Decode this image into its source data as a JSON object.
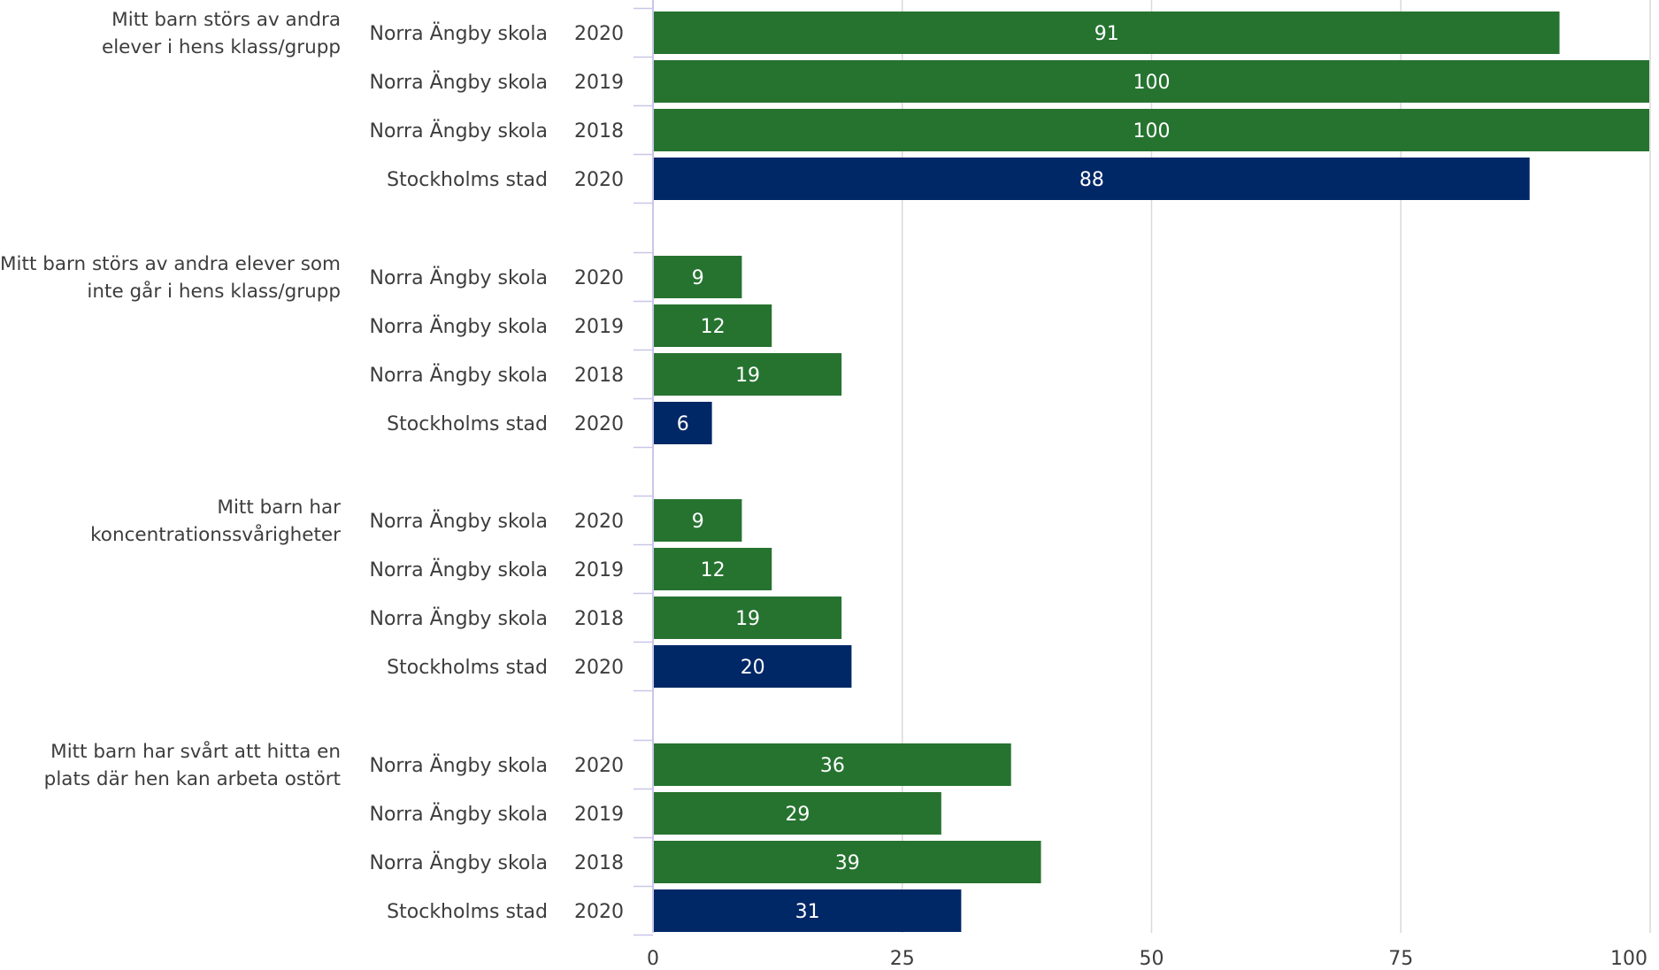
{
  "chart_data": {
    "type": "bar",
    "orientation": "horizontal",
    "xlim": [
      0,
      100
    ],
    "xticks": [
      0,
      25,
      50,
      75,
      100
    ],
    "grid": true,
    "colors": {
      "school": "#267330",
      "city": "#002766",
      "gridline": "#d9d9d9",
      "axis": "#c9c6e8",
      "text": "#3d3d3d"
    },
    "groups": [
      {
        "label_lines": [
          "Mitt barn störs av andra",
          "elever i hens klass/grupp"
        ],
        "rows": [
          {
            "org": "Norra Ängby skola",
            "year": "2020",
            "value": 91,
            "kind": "school"
          },
          {
            "org": "Norra Ängby skola",
            "year": "2019",
            "value": 100,
            "kind": "school"
          },
          {
            "org": "Norra Ängby skola",
            "year": "2018",
            "value": 100,
            "kind": "school"
          },
          {
            "org": "Stockholms stad",
            "year": "2020",
            "value": 88,
            "kind": "city"
          }
        ]
      },
      {
        "label_lines": [
          "Mitt barn störs av andra elever som",
          "inte går i hens klass/grupp"
        ],
        "rows": [
          {
            "org": "Norra Ängby skola",
            "year": "2020",
            "value": 9,
            "kind": "school"
          },
          {
            "org": "Norra Ängby skola",
            "year": "2019",
            "value": 12,
            "kind": "school"
          },
          {
            "org": "Norra Ängby skola",
            "year": "2018",
            "value": 19,
            "kind": "school"
          },
          {
            "org": "Stockholms stad",
            "year": "2020",
            "value": 6,
            "kind": "city"
          }
        ]
      },
      {
        "label_lines": [
          "Mitt barn har",
          "koncentrationssvårigheter"
        ],
        "rows": [
          {
            "org": "Norra Ängby skola",
            "year": "2020",
            "value": 9,
            "kind": "school"
          },
          {
            "org": "Norra Ängby skola",
            "year": "2019",
            "value": 12,
            "kind": "school"
          },
          {
            "org": "Norra Ängby skola",
            "year": "2018",
            "value": 19,
            "kind": "school"
          },
          {
            "org": "Stockholms stad",
            "year": "2020",
            "value": 20,
            "kind": "city"
          }
        ]
      },
      {
        "label_lines": [
          "Mitt barn har svårt att hitta en",
          "plats där hen kan arbeta ostört"
        ],
        "rows": [
          {
            "org": "Norra Ängby skola",
            "year": "2020",
            "value": 36,
            "kind": "school"
          },
          {
            "org": "Norra Ängby skola",
            "year": "2019",
            "value": 29,
            "kind": "school"
          },
          {
            "org": "Norra Ängby skola",
            "year": "2018",
            "value": 39,
            "kind": "school"
          },
          {
            "org": "Stockholms stad",
            "year": "2020",
            "value": 31,
            "kind": "city"
          }
        ]
      }
    ]
  }
}
